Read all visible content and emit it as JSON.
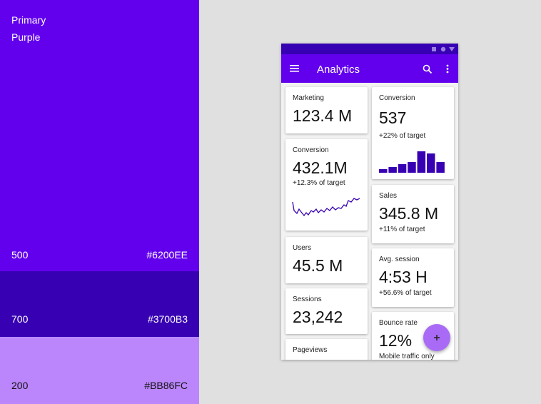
{
  "palette": {
    "name_line1": "Primary",
    "name_line2": "Purple",
    "swatches": [
      {
        "shade": "500",
        "hex": "#6200EE"
      },
      {
        "shade": "700",
        "hex": "#3700B3"
      },
      {
        "shade": "200",
        "hex": "#BB86FC"
      }
    ]
  },
  "app": {
    "title": "Analytics",
    "cards_left": [
      {
        "label": "Marketing",
        "value": "123.4 M"
      },
      {
        "label": "Conversion",
        "value": "432.1M",
        "sub": "+12.3% of target"
      },
      {
        "label": "Users",
        "value": "45.5 M"
      },
      {
        "label": "Sessions",
        "value": "23,242"
      },
      {
        "label": "Pageviews"
      }
    ],
    "cards_right": [
      {
        "label": "Conversion",
        "value": "537",
        "sub": "+22% of target"
      },
      {
        "label": "Sales",
        "value": "345.8 M",
        "sub": "+11% of target"
      },
      {
        "label": "Avg. session",
        "value": "4:53 H",
        "sub": "+56.6% of target"
      },
      {
        "label": "Bounce rate",
        "value": "12%",
        "sub": "Mobile traffic only"
      }
    ]
  }
}
